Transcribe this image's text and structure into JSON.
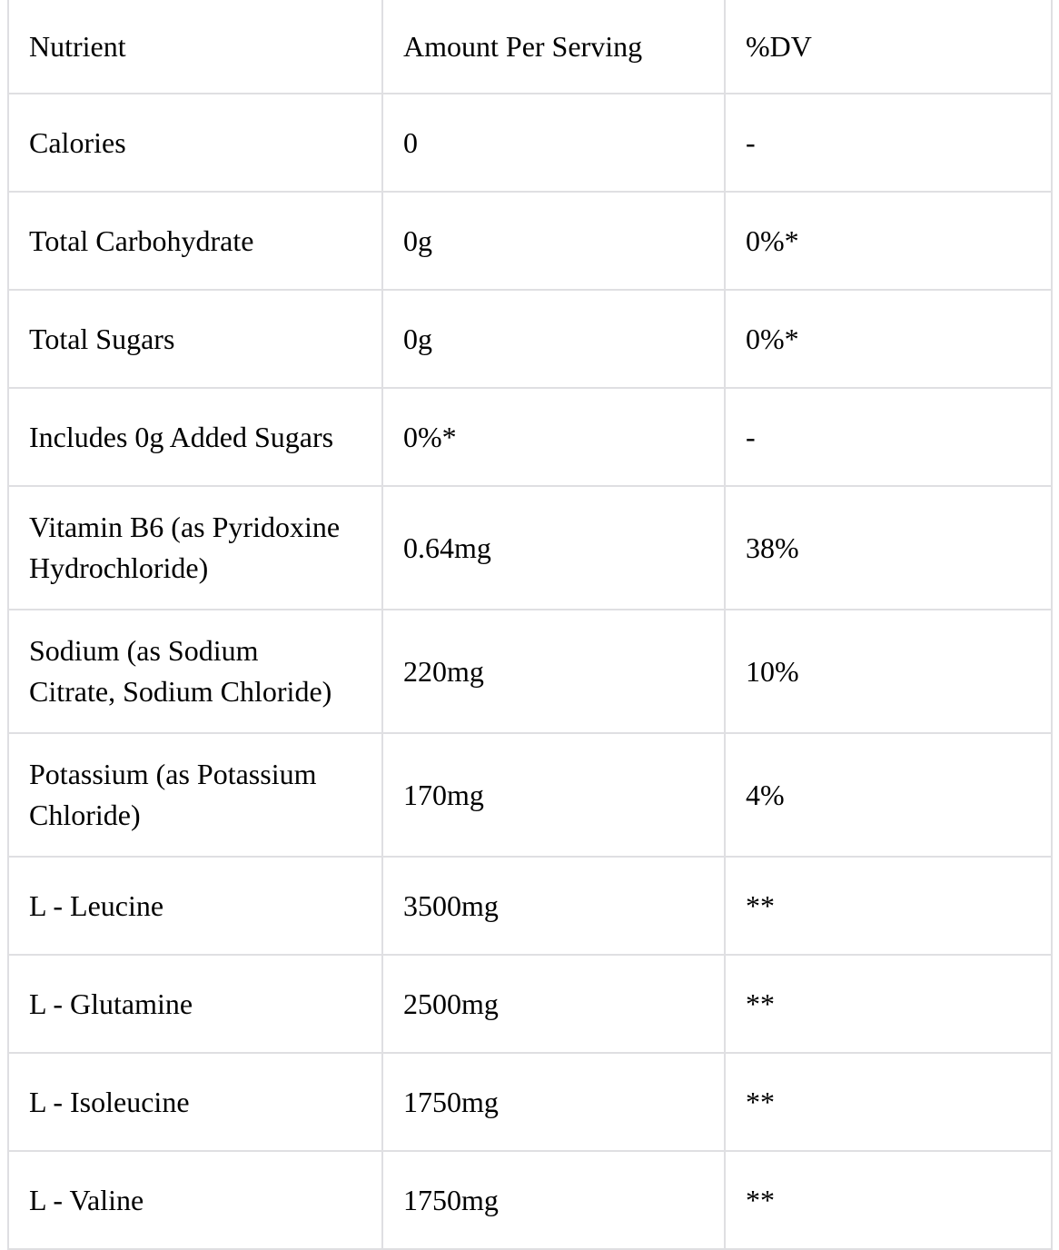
{
  "table": {
    "headers": [
      "Nutrient",
      "Amount Per Serving",
      "%DV"
    ],
    "rows": [
      {
        "nutrient": "Calories",
        "amount": "0",
        "dv": "-"
      },
      {
        "nutrient": "Total Carbohydrate",
        "amount": "0g",
        "dv": "0%*"
      },
      {
        "nutrient": "Total Sugars",
        "amount": "0g",
        "dv": "0%*"
      },
      {
        "nutrient": "Includes 0g Added Sugars",
        "amount": "0%*",
        "dv": "-"
      },
      {
        "nutrient": "Vitamin B6 (as Pyridoxine Hydrochloride)",
        "amount": "0.64mg",
        "dv": "38%"
      },
      {
        "nutrient": "Sodium (as Sodium Citrate, Sodium Chloride)",
        "amount": "220mg",
        "dv": "10%"
      },
      {
        "nutrient": "Potassium (as Potassium Chloride)",
        "amount": "170mg",
        "dv": "4%"
      },
      {
        "nutrient": "L - Leucine",
        "amount": "3500mg",
        "dv": "**"
      },
      {
        "nutrient": "L - Glutamine",
        "amount": "2500mg",
        "dv": "**"
      },
      {
        "nutrient": "L - Isoleucine",
        "amount": "1750mg",
        "dv": "**"
      },
      {
        "nutrient": "L - Valine",
        "amount": "1750mg",
        "dv": "**"
      }
    ]
  },
  "colors": {
    "border": "#dfdfe2",
    "text": "#000000",
    "background": "#ffffff"
  }
}
